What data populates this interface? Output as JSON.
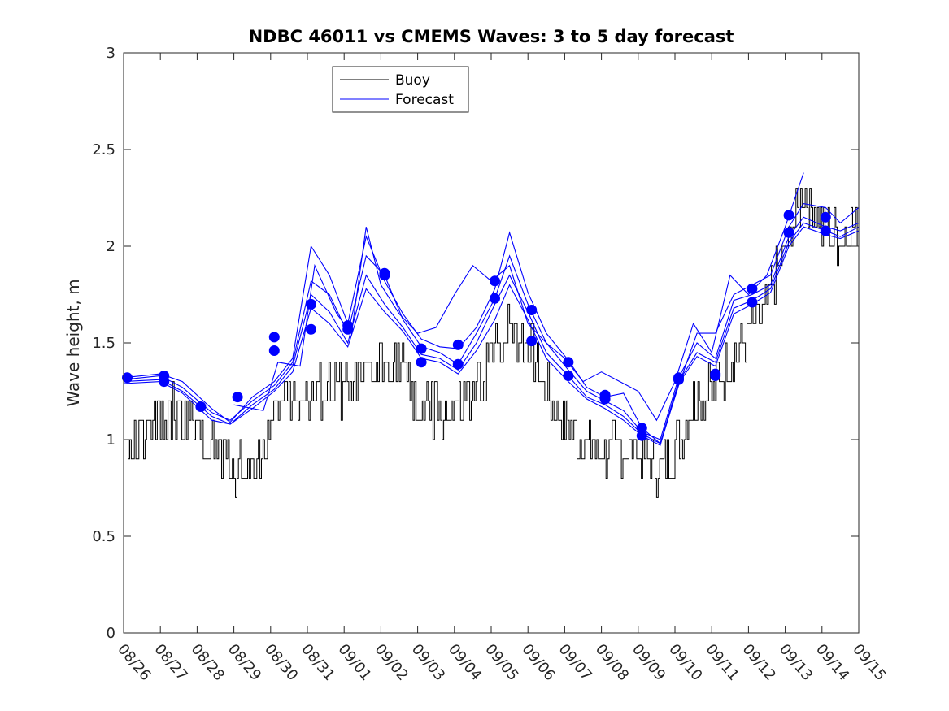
{
  "chart_data": {
    "type": "line",
    "title": "NDBC 46011 vs CMEMS Waves: 3 to 5 day forecast",
    "xlabel": "",
    "ylabel": "Wave height, m",
    "ylim": [
      0,
      3
    ],
    "yticks": [
      0,
      0.5,
      1,
      1.5,
      2,
      2.5,
      3
    ],
    "ytick_labels": [
      "0",
      "0.5",
      "1",
      "1.5",
      "2",
      "2.5",
      "3"
    ],
    "xlim_days": [
      0,
      20
    ],
    "xtick_labels": [
      "08/26",
      "08/27",
      "08/28",
      "08/29",
      "08/30",
      "08/31",
      "09/01",
      "09/02",
      "09/03",
      "09/04",
      "09/05",
      "09/06",
      "09/07",
      "09/08",
      "09/09",
      "09/10",
      "09/11",
      "09/12",
      "09/13",
      "09/14",
      "09/15"
    ],
    "legend": {
      "placement": "top-left",
      "entries": [
        "Buoy",
        "Forecast"
      ]
    },
    "colors": {
      "buoy": "#000000",
      "forecast": "#0000ff",
      "axes": "#262626"
    },
    "buoy_anchors": [
      [
        0.0,
        0.92
      ],
      [
        0.5,
        1.0
      ],
      [
        1.0,
        1.08
      ],
      [
        1.5,
        1.15
      ],
      [
        2.0,
        1.02
      ],
      [
        2.5,
        0.95
      ],
      [
        3.0,
        0.85
      ],
      [
        3.5,
        0.87
      ],
      [
        3.8,
        0.95
      ],
      [
        4.2,
        1.15
      ],
      [
        4.6,
        1.25
      ],
      [
        5.0,
        1.2
      ],
      [
        5.5,
        1.25
      ],
      [
        6.0,
        1.25
      ],
      [
        6.4,
        1.3
      ],
      [
        6.8,
        1.35
      ],
      [
        7.2,
        1.45
      ],
      [
        7.6,
        1.35
      ],
      [
        8.0,
        1.15
      ],
      [
        8.5,
        1.15
      ],
      [
        9.0,
        1.15
      ],
      [
        9.5,
        1.2
      ],
      [
        10.0,
        1.4
      ],
      [
        10.5,
        1.6
      ],
      [
        11.0,
        1.5
      ],
      [
        11.5,
        1.25
      ],
      [
        12.0,
        1.1
      ],
      [
        12.5,
        1.0
      ],
      [
        13.0,
        0.95
      ],
      [
        13.5,
        0.95
      ],
      [
        14.0,
        0.9
      ],
      [
        14.5,
        0.85
      ],
      [
        15.0,
        0.95
      ],
      [
        15.5,
        1.2
      ],
      [
        16.0,
        1.25
      ],
      [
        16.5,
        1.4
      ],
      [
        17.0,
        1.55
      ],
      [
        17.5,
        1.7
      ],
      [
        18.0,
        2.0
      ],
      [
        18.5,
        2.3
      ],
      [
        19.0,
        2.1
      ],
      [
        19.5,
        2.05
      ],
      [
        20.0,
        2.15
      ]
    ],
    "forecast_dots": [
      [
        0.1,
        1.32
      ],
      [
        1.1,
        1.33
      ],
      [
        1.1,
        1.3
      ],
      [
        2.1,
        1.17
      ],
      [
        3.1,
        1.22
      ],
      [
        4.1,
        1.53
      ],
      [
        4.1,
        1.46
      ],
      [
        5.1,
        1.7
      ],
      [
        5.1,
        1.57
      ],
      [
        6.1,
        1.59
      ],
      [
        6.1,
        1.57
      ],
      [
        7.1,
        1.86
      ],
      [
        7.1,
        1.85
      ],
      [
        8.1,
        1.47
      ],
      [
        8.1,
        1.4
      ],
      [
        9.1,
        1.49
      ],
      [
        9.1,
        1.39
      ],
      [
        10.1,
        1.82
      ],
      [
        10.1,
        1.73
      ],
      [
        11.1,
        1.67
      ],
      [
        11.1,
        1.51
      ],
      [
        12.1,
        1.4
      ],
      [
        12.1,
        1.33
      ],
      [
        13.1,
        1.23
      ],
      [
        13.1,
        1.21
      ],
      [
        14.1,
        1.06
      ],
      [
        14.1,
        1.02
      ],
      [
        15.1,
        1.32
      ],
      [
        15.1,
        1.31
      ],
      [
        16.1,
        1.34
      ],
      [
        16.1,
        1.33
      ],
      [
        17.1,
        1.78
      ],
      [
        17.1,
        1.71
      ],
      [
        18.1,
        2.16
      ],
      [
        18.1,
        2.07
      ],
      [
        19.1,
        2.15
      ],
      [
        19.1,
        2.08
      ]
    ],
    "forecast_series": [
      {
        "name": "Forecast 1",
        "points": [
          [
            0.0,
            1.32
          ],
          [
            1.0,
            1.34
          ],
          [
            1.6,
            1.3
          ],
          [
            2.4,
            1.16
          ],
          [
            2.9,
            1.09
          ],
          [
            3.5,
            1.22
          ],
          [
            4.1,
            1.3
          ],
          [
            4.6,
            1.42
          ],
          [
            5.1,
            2.0
          ],
          [
            5.6,
            1.85
          ],
          [
            6.1,
            1.6
          ],
          [
            6.6,
            2.05
          ],
          [
            7.1,
            1.82
          ],
          [
            7.6,
            1.65
          ],
          [
            8.1,
            1.52
          ],
          [
            8.6,
            1.48
          ],
          [
            9.1,
            1.47
          ],
          [
            9.6,
            1.58
          ],
          [
            10.1,
            1.78
          ],
          [
            10.5,
            2.07
          ],
          [
            11.0,
            1.76
          ],
          [
            11.5,
            1.55
          ],
          [
            12.1,
            1.41
          ],
          [
            12.6,
            1.27
          ],
          [
            13.1,
            1.22
          ],
          [
            13.6,
            1.24
          ],
          [
            14.1,
            1.06
          ],
          [
            14.6,
            0.98
          ],
          [
            15.1,
            1.28
          ],
          [
            15.6,
            1.55
          ],
          [
            16.1,
            1.55
          ],
          [
            16.6,
            1.75
          ],
          [
            17.1,
            1.8
          ],
          [
            17.6,
            1.85
          ],
          [
            18.1,
            2.1
          ],
          [
            18.5,
            2.22
          ],
          [
            19.1,
            2.2
          ],
          [
            19.5,
            2.12
          ],
          [
            20.0,
            2.2
          ]
        ]
      },
      {
        "name": "Forecast 2",
        "points": [
          [
            0.0,
            1.31
          ],
          [
            1.0,
            1.33
          ],
          [
            1.6,
            1.27
          ],
          [
            2.4,
            1.14
          ],
          [
            2.9,
            1.1
          ],
          [
            3.5,
            1.2
          ],
          [
            4.1,
            1.28
          ],
          [
            4.6,
            1.4
          ],
          [
            5.1,
            1.82
          ],
          [
            5.6,
            1.75
          ],
          [
            6.1,
            1.55
          ],
          [
            6.6,
            1.95
          ],
          [
            7.1,
            1.85
          ],
          [
            7.6,
            1.62
          ],
          [
            8.1,
            1.48
          ],
          [
            8.6,
            1.45
          ],
          [
            9.1,
            1.39
          ],
          [
            9.6,
            1.55
          ],
          [
            10.1,
            1.73
          ],
          [
            10.5,
            1.95
          ],
          [
            11.0,
            1.7
          ],
          [
            11.5,
            1.5
          ],
          [
            12.1,
            1.36
          ],
          [
            12.6,
            1.25
          ],
          [
            13.1,
            1.2
          ],
          [
            13.6,
            1.15
          ],
          [
            14.1,
            1.04
          ],
          [
            14.6,
            1.0
          ],
          [
            15.1,
            1.32
          ],
          [
            15.6,
            1.5
          ],
          [
            16.1,
            1.42
          ],
          [
            16.6,
            1.72
          ],
          [
            17.1,
            1.75
          ],
          [
            17.6,
            1.8
          ],
          [
            18.1,
            2.05
          ],
          [
            18.5,
            2.15
          ],
          [
            19.1,
            2.1
          ],
          [
            19.5,
            2.08
          ],
          [
            20.0,
            2.12
          ]
        ]
      },
      {
        "name": "Forecast 3",
        "points": [
          [
            0.0,
            1.3
          ],
          [
            1.0,
            1.31
          ],
          [
            1.6,
            1.25
          ],
          [
            2.4,
            1.12
          ],
          [
            2.9,
            1.08
          ],
          [
            3.5,
            1.18
          ],
          [
            4.1,
            1.26
          ],
          [
            4.6,
            1.38
          ],
          [
            5.1,
            1.75
          ],
          [
            5.6,
            1.66
          ],
          [
            6.1,
            1.5
          ],
          [
            6.6,
            1.85
          ],
          [
            7.1,
            1.7
          ],
          [
            7.6,
            1.58
          ],
          [
            8.1,
            1.44
          ],
          [
            8.6,
            1.42
          ],
          [
            9.1,
            1.36
          ],
          [
            9.6,
            1.5
          ],
          [
            10.1,
            1.7
          ],
          [
            10.5,
            1.85
          ],
          [
            11.0,
            1.66
          ],
          [
            11.5,
            1.45
          ],
          [
            12.1,
            1.33
          ],
          [
            12.6,
            1.22
          ],
          [
            13.1,
            1.18
          ],
          [
            13.6,
            1.12
          ],
          [
            14.1,
            1.03
          ],
          [
            14.6,
            0.98
          ],
          [
            15.1,
            1.3
          ],
          [
            15.6,
            1.45
          ],
          [
            16.1,
            1.4
          ],
          [
            16.6,
            1.68
          ],
          [
            17.1,
            1.72
          ],
          [
            17.6,
            1.78
          ],
          [
            18.1,
            2.02
          ],
          [
            18.5,
            2.12
          ],
          [
            19.1,
            2.08
          ],
          [
            19.5,
            2.05
          ],
          [
            20.0,
            2.1
          ]
        ]
      },
      {
        "name": "Forecast 4",
        "points": [
          [
            0.0,
            1.29
          ],
          [
            1.0,
            1.3
          ],
          [
            1.6,
            1.24
          ],
          [
            2.4,
            1.1
          ],
          [
            2.9,
            1.08
          ],
          [
            3.5,
            1.16
          ],
          [
            4.1,
            1.25
          ],
          [
            4.6,
            1.35
          ],
          [
            5.1,
            1.68
          ],
          [
            5.6,
            1.6
          ],
          [
            6.1,
            1.48
          ],
          [
            6.6,
            1.78
          ],
          [
            7.1,
            1.66
          ],
          [
            7.6,
            1.56
          ],
          [
            8.1,
            1.42
          ],
          [
            8.6,
            1.4
          ],
          [
            9.1,
            1.34
          ],
          [
            9.6,
            1.46
          ],
          [
            10.1,
            1.62
          ],
          [
            10.5,
            1.8
          ],
          [
            11.0,
            1.62
          ],
          [
            11.5,
            1.42
          ],
          [
            12.1,
            1.3
          ],
          [
            12.6,
            1.21
          ],
          [
            13.1,
            1.16
          ],
          [
            13.6,
            1.1
          ],
          [
            14.1,
            1.02
          ],
          [
            14.6,
            0.97
          ],
          [
            15.1,
            1.29
          ],
          [
            15.6,
            1.43
          ],
          [
            16.1,
            1.38
          ],
          [
            16.6,
            1.65
          ],
          [
            17.1,
            1.7
          ],
          [
            17.6,
            1.76
          ],
          [
            18.1,
            2.0
          ],
          [
            18.5,
            2.1
          ],
          [
            19.1,
            2.06
          ],
          [
            19.5,
            2.04
          ],
          [
            20.0,
            2.08
          ]
        ]
      },
      {
        "name": "Forecast 5",
        "points": [
          [
            3.0,
            1.18
          ],
          [
            3.8,
            1.15
          ],
          [
            4.2,
            1.4
          ],
          [
            4.8,
            1.38
          ],
          [
            5.2,
            1.9
          ],
          [
            5.8,
            1.65
          ],
          [
            6.2,
            1.55
          ],
          [
            6.6,
            2.1
          ],
          [
            7.0,
            1.8
          ],
          [
            7.5,
            1.65
          ],
          [
            8.0,
            1.55
          ],
          [
            8.5,
            1.58
          ],
          [
            9.0,
            1.75
          ],
          [
            9.5,
            1.9
          ],
          [
            10.0,
            1.82
          ],
          [
            10.5,
            1.9
          ],
          [
            11.0,
            1.6
          ],
          [
            11.5,
            1.5
          ],
          [
            12.0,
            1.42
          ],
          [
            12.5,
            1.3
          ],
          [
            13.0,
            1.35
          ],
          [
            13.5,
            1.3
          ],
          [
            14.0,
            1.25
          ],
          [
            14.5,
            1.1
          ],
          [
            15.0,
            1.3
          ],
          [
            15.5,
            1.6
          ],
          [
            16.0,
            1.45
          ],
          [
            16.5,
            1.85
          ],
          [
            17.0,
            1.75
          ],
          [
            17.5,
            1.85
          ],
          [
            18.0,
            2.1
          ],
          [
            18.5,
            2.38
          ]
        ]
      }
    ]
  }
}
